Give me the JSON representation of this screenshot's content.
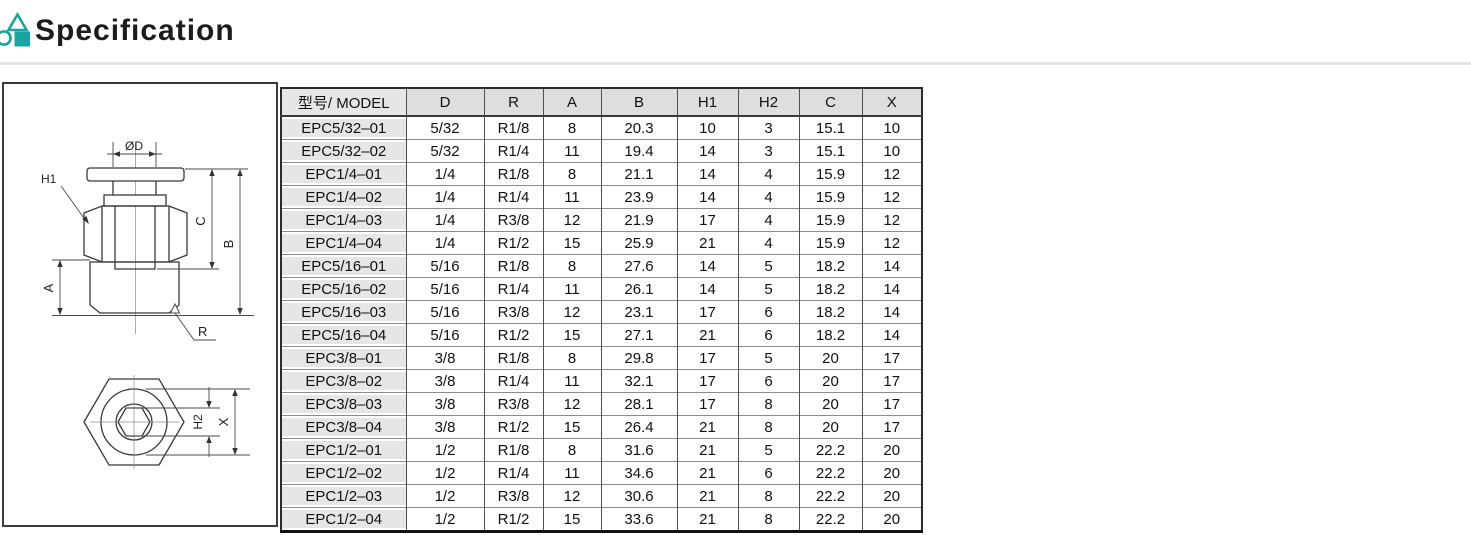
{
  "header": {
    "title": "Specification"
  },
  "colors": {
    "accent": "#18a4a1",
    "table_header_bg": "#dedede",
    "model_column_bg": "#e6e6e6",
    "border_dark": "#2b2b2b"
  },
  "diagram": {
    "description": "Technical drawing of EPC male straight push-to-connect fitting: side view with dimensions and bottom hex view",
    "labels": {
      "od": "ØD",
      "h1": "H1",
      "c": "C",
      "b": "B",
      "a": "A",
      "r": "R",
      "h2": "H2",
      "x": "X"
    }
  },
  "table": {
    "headers": [
      "型号/ MODEL",
      "D",
      "R",
      "A",
      "B",
      "H1",
      "H2",
      "C",
      "X"
    ],
    "rows": [
      [
        "EPC5/32–01",
        "5/32",
        "R1/8",
        "8",
        "20.3",
        "10",
        "3",
        "15.1",
        "10"
      ],
      [
        "EPC5/32–02",
        "5/32",
        "R1/4",
        "11",
        "19.4",
        "14",
        "3",
        "15.1",
        "10"
      ],
      [
        "EPC1/4–01",
        "1/4",
        "R1/8",
        "8",
        "21.1",
        "14",
        "4",
        "15.9",
        "12"
      ],
      [
        "EPC1/4–02",
        "1/4",
        "R1/4",
        "11",
        "23.9",
        "14",
        "4",
        "15.9",
        "12"
      ],
      [
        "EPC1/4–03",
        "1/4",
        "R3/8",
        "12",
        "21.9",
        "17",
        "4",
        "15.9",
        "12"
      ],
      [
        "EPC1/4–04",
        "1/4",
        "R1/2",
        "15",
        "25.9",
        "21",
        "4",
        "15.9",
        "12"
      ],
      [
        "EPC5/16–01",
        "5/16",
        "R1/8",
        "8",
        "27.6",
        "14",
        "5",
        "18.2",
        "14"
      ],
      [
        "EPC5/16–02",
        "5/16",
        "R1/4",
        "11",
        "26.1",
        "14",
        "5",
        "18.2",
        "14"
      ],
      [
        "EPC5/16–03",
        "5/16",
        "R3/8",
        "12",
        "23.1",
        "17",
        "6",
        "18.2",
        "14"
      ],
      [
        "EPC5/16–04",
        "5/16",
        "R1/2",
        "15",
        "27.1",
        "21",
        "6",
        "18.2",
        "14"
      ],
      [
        "EPC3/8–01",
        "3/8",
        "R1/8",
        "8",
        "29.8",
        "17",
        "5",
        "20",
        "17"
      ],
      [
        "EPC3/8–02",
        "3/8",
        "R1/4",
        "11",
        "32.1",
        "17",
        "6",
        "20",
        "17"
      ],
      [
        "EPC3/8–03",
        "3/8",
        "R3/8",
        "12",
        "28.1",
        "17",
        "8",
        "20",
        "17"
      ],
      [
        "EPC3/8–04",
        "3/8",
        "R1/2",
        "15",
        "26.4",
        "21",
        "8",
        "20",
        "17"
      ],
      [
        "EPC1/2–01",
        "1/2",
        "R1/8",
        "8",
        "31.6",
        "21",
        "5",
        "22.2",
        "20"
      ],
      [
        "EPC1/2–02",
        "1/2",
        "R1/4",
        "11",
        "34.6",
        "21",
        "6",
        "22.2",
        "20"
      ],
      [
        "EPC1/2–03",
        "1/2",
        "R3/8",
        "12",
        "30.6",
        "21",
        "8",
        "22.2",
        "20"
      ],
      [
        "EPC1/2–04",
        "1/2",
        "R1/2",
        "15",
        "33.6",
        "21",
        "8",
        "22.2",
        "20"
      ]
    ]
  }
}
